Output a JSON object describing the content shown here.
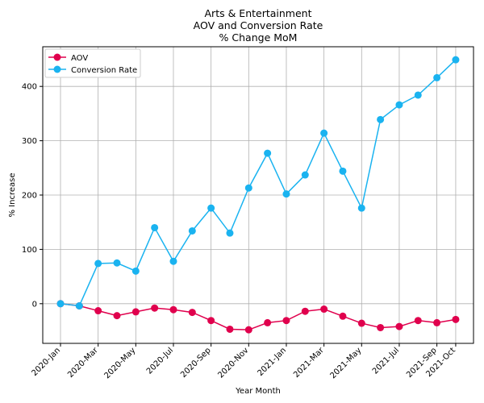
{
  "chart_data": {
    "type": "line",
    "title": [
      "Arts & Entertainment",
      "AOV and Conversion Rate",
      "% Change MoM"
    ],
    "xlabel": "Year Month",
    "ylabel": "% Increase",
    "x": [
      "2020-Jan",
      "2020-Feb",
      "2020-Mar",
      "2020-Apr",
      "2020-May",
      "2020-Jun",
      "2020-Jul",
      "2020-Aug",
      "2020-Sep",
      "2020-Oct",
      "2020-Nov",
      "2020-Dec",
      "2021-Jan",
      "2021-Feb",
      "2021-Mar",
      "2021-Apr",
      "2021-May",
      "2021-Jun",
      "2021-Jul",
      "2021-Aug",
      "2021-Sep",
      "2021-Oct"
    ],
    "x_tick_labels": [
      "2020-Jan",
      "2020-Mar",
      "2020-May",
      "2020-Jul",
      "2020-Sep",
      "2020-Nov",
      "2021-Jan",
      "2021-Mar",
      "2021-May",
      "2021-Jul",
      "2021-Sep",
      "2021-Oct"
    ],
    "y_ticks": [
      0,
      100,
      200,
      300,
      400
    ],
    "ylim": [
      -73,
      473
    ],
    "grid": true,
    "legend_position": "top-left",
    "series": [
      {
        "name": "AOV",
        "color": "#e0004d",
        "values": [
          0,
          -4,
          -13,
          -22,
          -15,
          -8,
          -11,
          -16,
          -31,
          -47,
          -48,
          -35,
          -31,
          -14,
          -10,
          -23,
          -36,
          -44,
          -42,
          -31,
          -35,
          -29
        ]
      },
      {
        "name": "Conversion Rate",
        "color": "#1ab3f0",
        "values": [
          0,
          -4,
          74,
          75,
          60,
          140,
          78,
          134,
          176,
          130,
          213,
          277,
          202,
          237,
          314,
          244,
          176,
          339,
          366,
          384,
          416,
          449
        ]
      }
    ]
  }
}
